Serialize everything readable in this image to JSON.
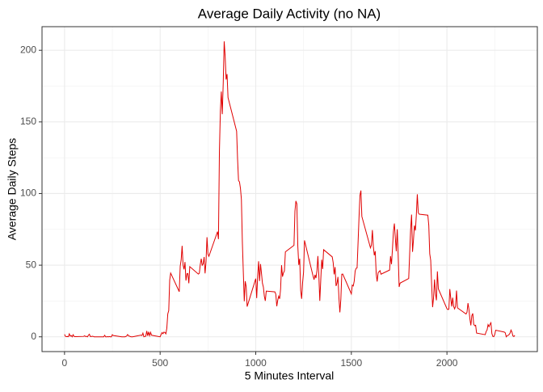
{
  "chart_data": {
    "type": "line",
    "title": "Average Daily Activity (no NA)",
    "x_label": "5 Minutes Interval",
    "y_label": "Average Daily Steps",
    "color": "#e00000",
    "x": [
      0,
      5,
      10,
      15,
      20,
      25,
      30,
      35,
      40,
      45,
      50,
      55,
      100,
      105,
      110,
      115,
      120,
      125,
      130,
      135,
      140,
      145,
      150,
      155,
      200,
      205,
      210,
      215,
      220,
      225,
      230,
      235,
      240,
      245,
      250,
      255,
      300,
      305,
      310,
      315,
      320,
      325,
      330,
      335,
      340,
      345,
      350,
      355,
      400,
      405,
      410,
      415,
      420,
      425,
      430,
      435,
      440,
      445,
      450,
      455,
      500,
      505,
      510,
      515,
      520,
      525,
      530,
      535,
      540,
      545,
      550,
      555,
      600,
      605,
      610,
      615,
      620,
      625,
      630,
      635,
      640,
      645,
      650,
      655,
      700,
      705,
      710,
      715,
      720,
      725,
      730,
      735,
      740,
      745,
      750,
      755,
      800,
      805,
      810,
      815,
      820,
      825,
      830,
      835,
      840,
      845,
      850,
      855,
      900,
      905,
      910,
      915,
      920,
      925,
      930,
      935,
      940,
      945,
      950,
      955,
      1000,
      1005,
      1010,
      1015,
      1020,
      1025,
      1030,
      1035,
      1040,
      1045,
      1050,
      1055,
      1100,
      1105,
      1110,
      1115,
      1120,
      1125,
      1130,
      1135,
      1140,
      1145,
      1150,
      1155,
      1200,
      1205,
      1210,
      1215,
      1220,
      1225,
      1230,
      1235,
      1240,
      1245,
      1250,
      1255,
      1300,
      1305,
      1310,
      1315,
      1320,
      1325,
      1330,
      1335,
      1340,
      1345,
      1350,
      1355,
      1400,
      1405,
      1410,
      1415,
      1420,
      1425,
      1430,
      1435,
      1440,
      1445,
      1450,
      1455,
      1500,
      1505,
      1510,
      1515,
      1520,
      1525,
      1530,
      1535,
      1540,
      1545,
      1550,
      1555,
      1600,
      1605,
      1610,
      1615,
      1620,
      1625,
      1630,
      1635,
      1640,
      1645,
      1650,
      1655,
      1700,
      1705,
      1710,
      1715,
      1720,
      1725,
      1730,
      1735,
      1740,
      1745,
      1750,
      1755,
      1800,
      1805,
      1810,
      1815,
      1820,
      1825,
      1830,
      1835,
      1840,
      1845,
      1850,
      1855,
      1900,
      1905,
      1910,
      1915,
      1920,
      1925,
      1930,
      1935,
      1940,
      1945,
      1950,
      1955,
      2000,
      2005,
      2010,
      2015,
      2020,
      2025,
      2030,
      2035,
      2040,
      2045,
      2050,
      2055,
      2100,
      2105,
      2110,
      2115,
      2120,
      2125,
      2130,
      2135,
      2140,
      2145,
      2150,
      2155,
      2200,
      2205,
      2210,
      2215,
      2220,
      2225,
      2230,
      2235,
      2240,
      2245,
      2250,
      2255,
      2300,
      2305,
      2310,
      2315,
      2320,
      2325,
      2330,
      2335,
      2340,
      2345,
      2350,
      2355
    ],
    "values": [
      1.7,
      0.3,
      0.1,
      0.2,
      0.1,
      2.1,
      0.5,
      0.9,
      0,
      1.5,
      0.3,
      0.1,
      0.3,
      0.7,
      0.2,
      0.3,
      0,
      1.1,
      1.8,
      0.2,
      0.2,
      0.4,
      0.3,
      0,
      0,
      0,
      1.1,
      0,
      0,
      0.1,
      0,
      0.2,
      0,
      0,
      1.5,
      0.9,
      0,
      0,
      0,
      0,
      0.2,
      0.6,
      1.6,
      0.6,
      0.5,
      0.1,
      0,
      0,
      1.2,
      0.9,
      2.6,
      0,
      0.3,
      0.4,
      4.1,
      0.7,
      3.5,
      0.8,
      3.1,
      1.1,
      0,
      1.6,
      3,
      2.2,
      3.3,
      3,
      2.1,
      6.1,
      16,
      18.3,
      39.5,
      44.5,
      31.5,
      49.3,
      53.8,
      63.5,
      50,
      47.1,
      52.2,
      39.3,
      44,
      44.2,
      37.4,
      49,
      43.8,
      44.4,
      50.5,
      54.5,
      49.9,
      50.9,
      55.7,
      44.3,
      52.3,
      69.5,
      57.8,
      56.2,
      73.4,
      68.2,
      129.4,
      157.5,
      171.2,
      155.4,
      177.3,
      206.2,
      195.9,
      179.6,
      183.4,
      167,
      143.5,
      124,
      109.1,
      108.1,
      103.7,
      95.9,
      66.2,
      45.2,
      24.8,
      38.8,
      35,
      21.1,
      40.6,
      27,
      42.4,
      52.7,
      38.9,
      50.8,
      44.3,
      37.4,
      34.7,
      28.3,
      25.1,
      31.9,
      31.4,
      29.7,
      21.3,
      25.5,
      28.4,
      26.5,
      33.4,
      50,
      42,
      44.6,
      46,
      59.3,
      63.9,
      87.7,
      94.8,
      92.8,
      63.4,
      50.2,
      54.5,
      32.4,
      26.5,
      37.7,
      45,
      67.3,
      42.3,
      39.9,
      43.3,
      41,
      46.2,
      56.4,
      42.8,
      25.1,
      39.5,
      53.8,
      47.3,
      60.8,
      55.8,
      51.8,
      43.6,
      48.7,
      35.5,
      37.5,
      41.8,
      27.5,
      17.1,
      26.1,
      43.7,
      43.8,
      30,
      36.1,
      35.5,
      38.8,
      46,
      47.8,
      48.1,
      65.3,
      82.9,
      98.7,
      102.1,
      84,
      62.1,
      64.1,
      74.5,
      63.2,
      56.9,
      59.8,
      43.9,
      38.6,
      44.7,
      45.5,
      46.2,
      43.7,
      46.6,
      56.3,
      50.7,
      61.2,
      73.4,
      79.1,
      68.9,
      59.7,
      75.1,
      56.5,
      34.8,
      37.5,
      40.7,
      58,
      74.7,
      85.3,
      59.3,
      67.8,
      77.7,
      74.2,
      85.3,
      99.5,
      86.6,
      85.6,
      84.9,
      77.8,
      58,
      53.4,
      36.3,
      20.7,
      27.4,
      40,
      30.2,
      25.5,
      45.7,
      33.5,
      19.6,
      19,
      19.3,
      33.3,
      26.8,
      21.2,
      27.3,
      21.3,
      19.5,
      21.3,
      32.3,
      20.2,
      15.9,
      17.2,
      23.5,
      19.2,
      12.5,
      8,
      14.7,
      16.3,
      8.7,
      7.8,
      8.1,
      2.6,
      1.5,
      3.7,
      4.8,
      8.5,
      7.1,
      8.7,
      9.8,
      2.2,
      0.3,
      0.1,
      1.6,
      4.6,
      3.3,
      2.8,
      0,
      0.8,
      1,
      1.6,
      2.6,
      4.7,
      3.3,
      0.6,
      0.2,
      1.1
    ],
    "xlim": [
      -117.75,
      2472.75
    ],
    "xticks": [
      0,
      500,
      1000,
      1500,
      2000
    ],
    "x_minor_ticks": [
      250,
      750,
      1250,
      1750,
      2250
    ],
    "ylim": [
      -10.31,
      216.48
    ],
    "yticks": [
      0,
      50,
      100,
      150,
      200
    ],
    "y_minor_ticks": [
      25,
      75,
      125,
      175
    ],
    "grid": true
  }
}
